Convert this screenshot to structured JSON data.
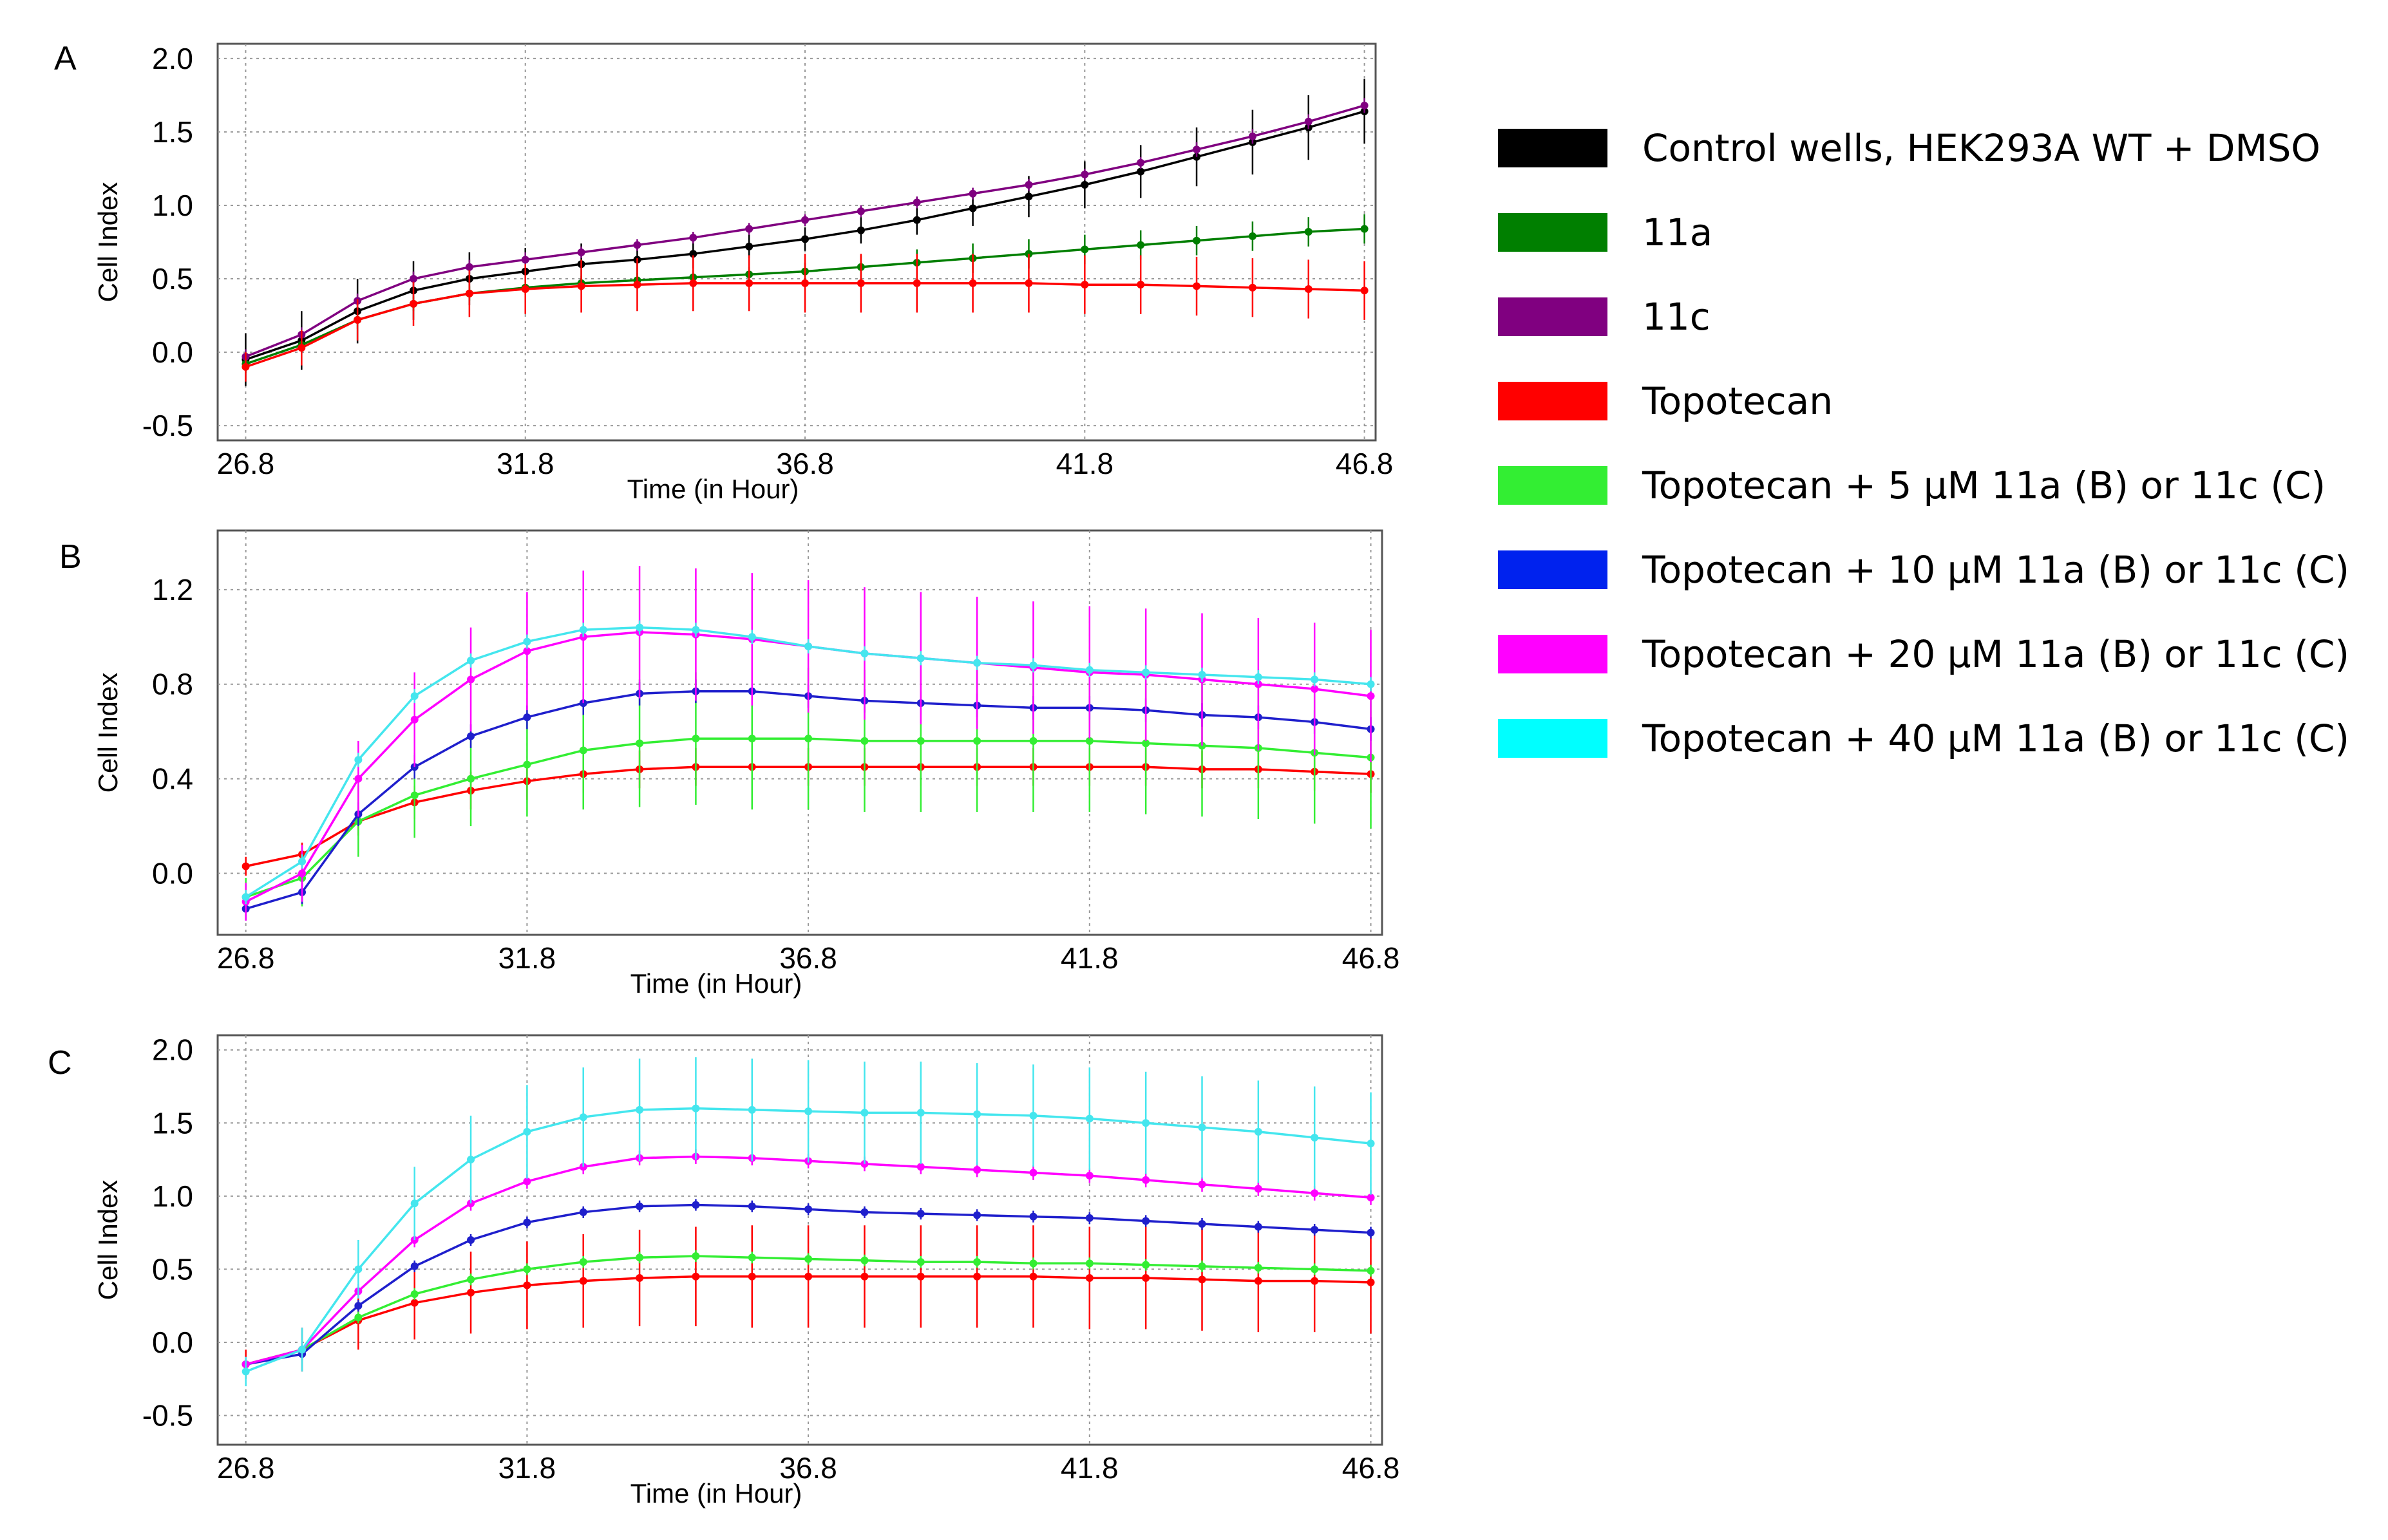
{
  "chart_data": [
    {
      "type": "line",
      "panel": "A",
      "xlabel": "Time (in Hour)",
      "ylabel": "Cell Index",
      "xticks": [
        "26.8",
        "31.8",
        "36.8",
        "41.8",
        "46.8"
      ],
      "yticks": [
        "-0.5",
        "0.0",
        "0.5",
        "1.0",
        "1.5",
        "2.0"
      ],
      "xlim": [
        26.3,
        47.0
      ],
      "ylim": [
        -0.6,
        2.1
      ],
      "x": [
        26.8,
        27.8,
        28.8,
        29.8,
        30.8,
        31.8,
        32.8,
        33.8,
        34.8,
        35.8,
        36.8,
        37.8,
        38.8,
        39.8,
        40.8,
        41.8,
        42.8,
        43.8,
        44.8,
        45.8,
        46.8
      ],
      "series": [
        {
          "name": "Control wells, HEK293A WT + DMSO",
          "color": "#000000",
          "values": [
            -0.05,
            0.08,
            0.28,
            0.42,
            0.5,
            0.55,
            0.6,
            0.63,
            0.67,
            0.72,
            0.77,
            0.83,
            0.9,
            0.98,
            1.06,
            1.14,
            1.23,
            1.33,
            1.43,
            1.53,
            1.64
          ],
          "err": [
            0.18,
            0.2,
            0.22,
            0.2,
            0.18,
            0.16,
            0.14,
            0.12,
            0.1,
            0.08,
            0.08,
            0.09,
            0.1,
            0.12,
            0.14,
            0.16,
            0.18,
            0.2,
            0.22,
            0.22,
            0.22
          ]
        },
        {
          "name": "11a",
          "color": "#007f00",
          "values": [
            -0.08,
            0.05,
            0.22,
            0.33,
            0.4,
            0.44,
            0.47,
            0.49,
            0.51,
            0.53,
            0.55,
            0.58,
            0.61,
            0.64,
            0.67,
            0.7,
            0.73,
            0.76,
            0.79,
            0.82,
            0.84
          ],
          "err": [
            0.06,
            0.06,
            0.06,
            0.05,
            0.05,
            0.05,
            0.05,
            0.05,
            0.05,
            0.05,
            0.06,
            0.08,
            0.09,
            0.1,
            0.1,
            0.1,
            0.1,
            0.1,
            0.1,
            0.1,
            0.1
          ]
        },
        {
          "name": "11c",
          "color": "#800080",
          "values": [
            -0.03,
            0.12,
            0.35,
            0.5,
            0.58,
            0.63,
            0.68,
            0.73,
            0.78,
            0.84,
            0.9,
            0.96,
            1.02,
            1.08,
            1.14,
            1.21,
            1.29,
            1.38,
            1.47,
            1.57,
            1.68
          ],
          "err": [
            0.05,
            0.05,
            0.05,
            0.05,
            0.05,
            0.05,
            0.04,
            0.04,
            0.04,
            0.04,
            0.04,
            0.04,
            0.04,
            0.04,
            0.04,
            0.04,
            0.04,
            0.05,
            0.05,
            0.05,
            0.05
          ]
        },
        {
          "name": "Topotecan",
          "color": "#ff0000",
          "values": [
            -0.1,
            0.03,
            0.22,
            0.33,
            0.4,
            0.43,
            0.45,
            0.46,
            0.47,
            0.47,
            0.47,
            0.47,
            0.47,
            0.47,
            0.47,
            0.46,
            0.46,
            0.45,
            0.44,
            0.43,
            0.42
          ],
          "err": [
            0.1,
            0.12,
            0.14,
            0.15,
            0.16,
            0.17,
            0.18,
            0.18,
            0.19,
            0.19,
            0.2,
            0.2,
            0.2,
            0.2,
            0.2,
            0.2,
            0.2,
            0.2,
            0.2,
            0.2,
            0.2
          ]
        }
      ]
    },
    {
      "type": "line",
      "panel": "B",
      "xlabel": "Time (in Hour)",
      "ylabel": "Cell Index",
      "xticks": [
        "26.8",
        "31.8",
        "36.8",
        "41.8",
        "46.8"
      ],
      "yticks": [
        "0.0",
        "0.4",
        "0.8",
        "1.2"
      ],
      "xlim": [
        26.3,
        47.0
      ],
      "ylim": [
        -0.26,
        1.45
      ],
      "x": [
        26.8,
        27.8,
        28.8,
        29.8,
        30.8,
        31.8,
        32.8,
        33.8,
        34.8,
        35.8,
        36.8,
        37.8,
        38.8,
        39.8,
        40.8,
        41.8,
        42.8,
        43.8,
        44.8,
        45.8,
        46.8
      ],
      "series": [
        {
          "name": "Topotecan",
          "color": "#ff0000",
          "values": [
            0.03,
            0.08,
            0.22,
            0.3,
            0.35,
            0.39,
            0.42,
            0.44,
            0.45,
            0.45,
            0.45,
            0.45,
            0.45,
            0.45,
            0.45,
            0.45,
            0.45,
            0.44,
            0.44,
            0.43,
            0.42
          ],
          "err": [
            0.04,
            0.05,
            0.06,
            0.07,
            0.08,
            0.08,
            0.08,
            0.08,
            0.08,
            0.08,
            0.08,
            0.08,
            0.08,
            0.08,
            0.08,
            0.08,
            0.08,
            0.08,
            0.08,
            0.08,
            0.08
          ]
        },
        {
          "name": "Topotecan + 5 μM 11a (B) or 11c (C)",
          "color": "#33ee33",
          "values": [
            -0.1,
            -0.02,
            0.22,
            0.33,
            0.4,
            0.46,
            0.52,
            0.55,
            0.57,
            0.57,
            0.57,
            0.56,
            0.56,
            0.56,
            0.56,
            0.56,
            0.55,
            0.54,
            0.53,
            0.51,
            0.49
          ],
          "err": [
            0.08,
            0.12,
            0.15,
            0.18,
            0.2,
            0.22,
            0.25,
            0.27,
            0.28,
            0.3,
            0.3,
            0.3,
            0.3,
            0.3,
            0.3,
            0.3,
            0.3,
            0.3,
            0.3,
            0.3,
            0.3
          ]
        },
        {
          "name": "Topotecan + 10 μM 11a (B) or 11c (C)",
          "color": "#1f1fcc",
          "values": [
            -0.15,
            -0.08,
            0.25,
            0.45,
            0.58,
            0.66,
            0.72,
            0.76,
            0.77,
            0.77,
            0.75,
            0.73,
            0.72,
            0.71,
            0.7,
            0.7,
            0.69,
            0.67,
            0.66,
            0.64,
            0.61
          ],
          "err": [
            0.05,
            0.05,
            0.05,
            0.05,
            0.05,
            0.05,
            0.05,
            0.05,
            0.05,
            0.05,
            0.05,
            0.05,
            0.05,
            0.05,
            0.05,
            0.05,
            0.05,
            0.05,
            0.05,
            0.05,
            0.05
          ]
        },
        {
          "name": "Topotecan + 20 μM 11a (B) or 11c (C)",
          "color": "#ff00ff",
          "values": [
            -0.12,
            0.0,
            0.4,
            0.65,
            0.82,
            0.94,
            1.0,
            1.02,
            1.01,
            0.99,
            0.96,
            0.93,
            0.91,
            0.89,
            0.87,
            0.85,
            0.84,
            0.82,
            0.8,
            0.78,
            0.75
          ],
          "err": [
            0.08,
            0.12,
            0.16,
            0.2,
            0.22,
            0.25,
            0.28,
            0.28,
            0.28,
            0.28,
            0.28,
            0.28,
            0.28,
            0.28,
            0.28,
            0.28,
            0.28,
            0.28,
            0.28,
            0.28,
            0.28
          ]
        },
        {
          "name": "Topotecan + 40 μM 11a (B) or 11c (C)",
          "color": "#44e6ee",
          "values": [
            -0.1,
            0.05,
            0.48,
            0.75,
            0.9,
            0.98,
            1.03,
            1.04,
            1.03,
            1.0,
            0.96,
            0.93,
            0.91,
            0.89,
            0.88,
            0.86,
            0.85,
            0.84,
            0.83,
            0.82,
            0.8
          ],
          "err": [
            0.03,
            0.03,
            0.03,
            0.03,
            0.03,
            0.03,
            0.03,
            0.03,
            0.03,
            0.03,
            0.03,
            0.03,
            0.03,
            0.03,
            0.03,
            0.03,
            0.03,
            0.03,
            0.03,
            0.03,
            0.03
          ]
        }
      ]
    },
    {
      "type": "line",
      "panel": "C",
      "xlabel": "Time (in Hour)",
      "ylabel": "Cell Index",
      "xticks": [
        "26.8",
        "31.8",
        "36.8",
        "41.8",
        "46.8"
      ],
      "yticks": [
        "-0.5",
        "0.0",
        "0.5",
        "1.0",
        "1.5",
        "2.0"
      ],
      "xlim": [
        26.3,
        47.0
      ],
      "ylim": [
        -0.7,
        2.1
      ],
      "x": [
        26.8,
        27.8,
        28.8,
        29.8,
        30.8,
        31.8,
        32.8,
        33.8,
        34.8,
        35.8,
        36.8,
        37.8,
        38.8,
        39.8,
        40.8,
        41.8,
        42.8,
        43.8,
        44.8,
        45.8,
        46.8
      ],
      "series": [
        {
          "name": "Topotecan",
          "color": "#ff0000",
          "values": [
            -0.15,
            -0.05,
            0.15,
            0.27,
            0.34,
            0.39,
            0.42,
            0.44,
            0.45,
            0.45,
            0.45,
            0.45,
            0.45,
            0.45,
            0.45,
            0.44,
            0.44,
            0.43,
            0.42,
            0.42,
            0.41
          ],
          "err": [
            0.1,
            0.15,
            0.2,
            0.25,
            0.28,
            0.3,
            0.32,
            0.33,
            0.34,
            0.35,
            0.35,
            0.35,
            0.35,
            0.35,
            0.35,
            0.35,
            0.35,
            0.35,
            0.35,
            0.35,
            0.35
          ]
        },
        {
          "name": "Topotecan + 5 μM 11a (B) or 11c (C)",
          "color": "#33ee33",
          "values": [
            -0.15,
            -0.05,
            0.17,
            0.33,
            0.43,
            0.5,
            0.55,
            0.58,
            0.59,
            0.58,
            0.57,
            0.56,
            0.55,
            0.55,
            0.54,
            0.54,
            0.53,
            0.52,
            0.51,
            0.5,
            0.49
          ],
          "err": [
            0.04,
            0.04,
            0.04,
            0.04,
            0.04,
            0.04,
            0.04,
            0.04,
            0.04,
            0.04,
            0.04,
            0.04,
            0.04,
            0.04,
            0.04,
            0.04,
            0.04,
            0.04,
            0.04,
            0.04,
            0.04
          ]
        },
        {
          "name": "Topotecan + 10 μM 11a (B) or 11c (C)",
          "color": "#1f1fcc",
          "values": [
            -0.15,
            -0.08,
            0.25,
            0.52,
            0.7,
            0.82,
            0.89,
            0.93,
            0.94,
            0.93,
            0.91,
            0.89,
            0.88,
            0.87,
            0.86,
            0.85,
            0.83,
            0.81,
            0.79,
            0.77,
            0.75
          ],
          "err": [
            0.04,
            0.04,
            0.04,
            0.04,
            0.04,
            0.04,
            0.04,
            0.04,
            0.04,
            0.04,
            0.04,
            0.04,
            0.04,
            0.04,
            0.04,
            0.04,
            0.04,
            0.04,
            0.04,
            0.04,
            0.04
          ]
        },
        {
          "name": "Topotecan + 20 μM 11a (B) or 11c (C)",
          "color": "#ff00ff",
          "values": [
            -0.15,
            -0.05,
            0.35,
            0.7,
            0.95,
            1.1,
            1.2,
            1.26,
            1.27,
            1.26,
            1.24,
            1.22,
            1.2,
            1.18,
            1.16,
            1.14,
            1.11,
            1.08,
            1.05,
            1.02,
            0.99
          ],
          "err": [
            0.05,
            0.05,
            0.05,
            0.05,
            0.05,
            0.05,
            0.05,
            0.05,
            0.05,
            0.05,
            0.05,
            0.05,
            0.05,
            0.05,
            0.05,
            0.05,
            0.05,
            0.05,
            0.05,
            0.05,
            0.05
          ]
        },
        {
          "name": "Topotecan + 40 μM 11a (B) or 11c (C)",
          "color": "#44e6ee",
          "values": [
            -0.2,
            -0.05,
            0.5,
            0.95,
            1.25,
            1.44,
            1.54,
            1.59,
            1.6,
            1.59,
            1.58,
            1.57,
            1.57,
            1.56,
            1.55,
            1.53,
            1.5,
            1.47,
            1.44,
            1.4,
            1.36
          ],
          "err": [
            0.1,
            0.15,
            0.2,
            0.25,
            0.3,
            0.32,
            0.34,
            0.35,
            0.35,
            0.35,
            0.35,
            0.35,
            0.35,
            0.35,
            0.35,
            0.35,
            0.35,
            0.35,
            0.35,
            0.35,
            0.35
          ]
        }
      ]
    }
  ],
  "legend": {
    "items": [
      {
        "label": "Control wells, HEK293A WT + DMSO",
        "color": "#000000"
      },
      {
        "label": "11a",
        "color": "#007f00"
      },
      {
        "label": "11c",
        "color": "#800080"
      },
      {
        "label": "Topotecan",
        "color": "#ff0000"
      },
      {
        "label": "Topotecan + 5 μM 11a (B) or 11c (C)",
        "color": "#33ee33"
      },
      {
        "label": "Topotecan + 10 μM 11a (B) or 11c (C)",
        "color": "#0022ee"
      },
      {
        "label": "Topotecan + 20 μM 11a (B) or 11c (C)",
        "color": "#ff00ff"
      },
      {
        "label": "Topotecan + 40 μM 11a (B) or 11c (C)",
        "color": "#00ffff"
      }
    ]
  }
}
